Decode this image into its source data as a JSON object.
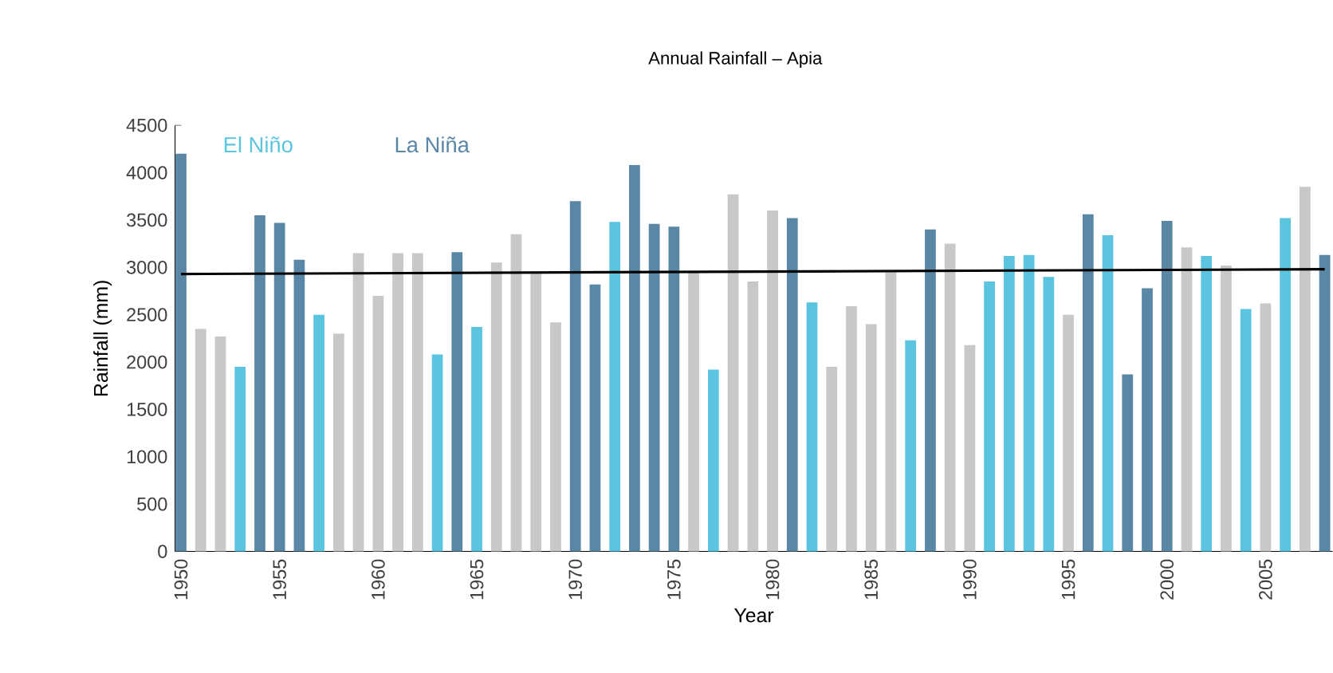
{
  "chart_data": {
    "type": "bar",
    "title": "Annual Rainfall – Apia",
    "xlabel": "Year",
    "ylabel": "Rainfall (mm)",
    "x": [
      1950,
      1951,
      1952,
      1953,
      1954,
      1955,
      1956,
      1957,
      1958,
      1959,
      1960,
      1961,
      1962,
      1963,
      1964,
      1965,
      1966,
      1967,
      1968,
      1969,
      1970,
      1971,
      1972,
      1973,
      1974,
      1975,
      1976,
      1977,
      1978,
      1979,
      1980,
      1981,
      1982,
      1983,
      1984,
      1985,
      1986,
      1987,
      1988,
      1989,
      1990,
      1991,
      1992,
      1993,
      1994,
      1995,
      1996,
      1997,
      1998,
      1999,
      2000,
      2001,
      2002,
      2003,
      2004,
      2005,
      2006,
      2007,
      2008
    ],
    "series": [
      {
        "name": "El Niño",
        "color": "#5bc5e0",
        "values": [
          null,
          null,
          null,
          1950,
          null,
          null,
          null,
          2500,
          null,
          null,
          null,
          null,
          null,
          2080,
          null,
          2370,
          null,
          null,
          null,
          null,
          null,
          null,
          3480,
          null,
          null,
          null,
          null,
          1920,
          null,
          null,
          null,
          null,
          2630,
          null,
          null,
          null,
          null,
          2230,
          null,
          null,
          null,
          2850,
          3120,
          3130,
          2900,
          null,
          null,
          3340,
          null,
          null,
          null,
          null,
          3120,
          null,
          2560,
          null,
          3520,
          null,
          null
        ]
      },
      {
        "name": "La Niña",
        "color": "#5a87a6",
        "values": [
          4200,
          null,
          null,
          null,
          3550,
          3470,
          3080,
          null,
          null,
          null,
          null,
          null,
          null,
          null,
          3160,
          null,
          null,
          null,
          null,
          null,
          3700,
          2820,
          null,
          4080,
          3460,
          3430,
          null,
          null,
          null,
          null,
          null,
          3520,
          null,
          null,
          null,
          null,
          null,
          null,
          3400,
          null,
          null,
          null,
          null,
          null,
          null,
          null,
          3560,
          null,
          1870,
          2780,
          3490,
          null,
          null,
          null,
          null,
          null,
          null,
          null,
          3130
        ]
      },
      {
        "color": "#c8c8cb",
        "values": [
          null,
          2350,
          2270,
          null,
          null,
          null,
          null,
          null,
          2300,
          3150,
          2700,
          3150,
          3150,
          null,
          null,
          null,
          3050,
          3350,
          2950,
          2420,
          null,
          null,
          null,
          null,
          null,
          null,
          2950,
          null,
          3770,
          2850,
          3600,
          null,
          null,
          1950,
          2590,
          2400,
          2950,
          null,
          null,
          3250,
          2180,
          null,
          null,
          null,
          null,
          2500,
          null,
          null,
          null,
          null,
          null,
          3210,
          null,
          3020,
          null,
          2620,
          null,
          3850,
          null
        ]
      },
      {
        "type": "line",
        "color": "#000000",
        "x": [
          1950,
          2008
        ],
        "values": [
          2930,
          2980
        ]
      }
    ],
    "xlim": [
      1949.7,
      2008.4
    ],
    "ylim": [
      0,
      4500
    ],
    "xticks": [
      1950,
      1955,
      1960,
      1965,
      1970,
      1975,
      1980,
      1985,
      1990,
      1995,
      2000,
      2005
    ],
    "yticks": [
      0,
      500,
      1000,
      1500,
      2000,
      2500,
      3000,
      3500,
      4000,
      4500
    ],
    "legend": "top left",
    "grid": false
  }
}
